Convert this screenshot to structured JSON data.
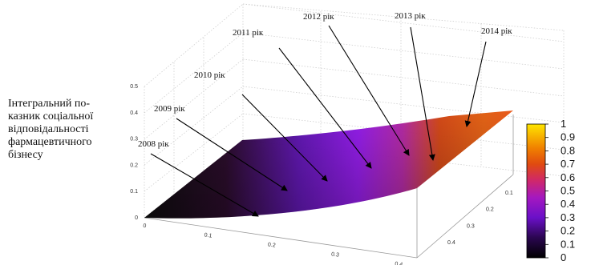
{
  "chart_data": {
    "type": "surface",
    "title": "",
    "zlabel_lines": [
      "Інтегральний по-",
      "казник соціальної",
      "відповідальності",
      "фармацевтичного",
      "бізнесу"
    ],
    "x_ticks": [
      "0",
      "0.1",
      "0.2",
      "0.3",
      "0.4"
    ],
    "y_ticks": [
      "0.1",
      "0.2",
      "0.3",
      "0.4"
    ],
    "z_ticks": [
      "0",
      "0.1",
      "0.2",
      "0.3",
      "0.4",
      "0.5"
    ],
    "zlim": [
      0,
      0.5
    ],
    "colorbar": {
      "ticks": [
        "0",
        "0.1",
        "0.2",
        "0.3",
        "0.4",
        "0.5",
        "0.6",
        "0.7",
        "0.8",
        "0.9",
        "1"
      ],
      "range": [
        0,
        1
      ],
      "palette": [
        "#000000",
        "#3a0a78",
        "#7a10d8",
        "#c02080",
        "#e04010",
        "#f08000",
        "#ffe000"
      ]
    },
    "annotations": [
      {
        "label": "2008 рік"
      },
      {
        "label": "2009 рік"
      },
      {
        "label": "2010 рік"
      },
      {
        "label": "2011 рік"
      },
      {
        "label": "2012 рік"
      },
      {
        "label": "2013 рік"
      },
      {
        "label": "2014 рік"
      }
    ],
    "grid": true
  }
}
